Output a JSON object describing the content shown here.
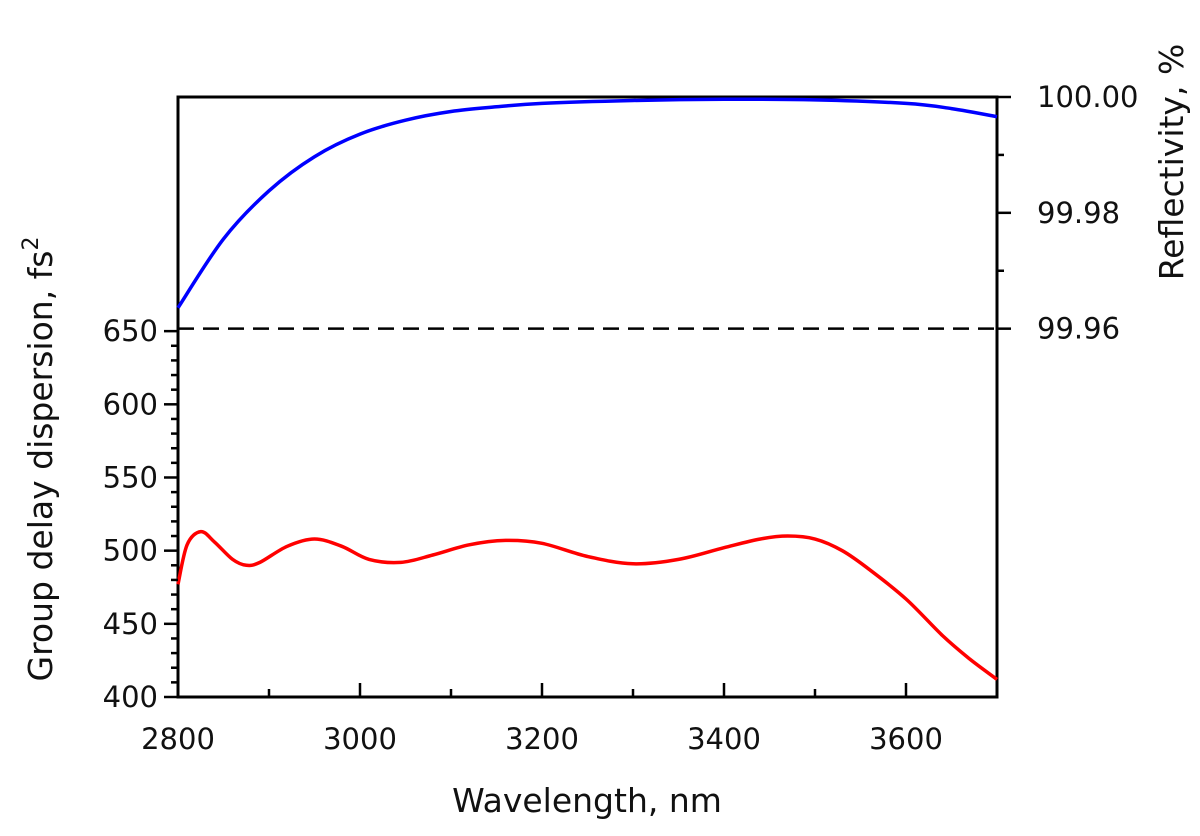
{
  "chart_data": {
    "type": "line",
    "xlabel": "Wavelength, nm",
    "ylabel": "Group delay dispersion, fs",
    "ylabel_superscript": "2",
    "y2label": "Reflectivity, %",
    "xlim": [
      2800,
      3700
    ],
    "ylim": [
      400,
      810
    ],
    "y2lim": [
      99.8964,
      100.0
    ],
    "x_ticks": [
      "2800",
      "3000",
      "3200",
      "3400",
      "3600"
    ],
    "y_ticks": [
      "400",
      "450",
      "500",
      "550",
      "600",
      "650"
    ],
    "y2_ticks": [
      "99.96",
      "99.98",
      "100.00"
    ],
    "reference_line": {
      "axis": "right",
      "value": 99.96,
      "style": "dashed"
    },
    "series": [
      {
        "color": "#ff0000",
        "axis": "left",
        "x": [
          2800,
          2810,
          2825,
          2840,
          2860,
          2875,
          2890,
          2920,
          2950,
          2980,
          3010,
          3045,
          3080,
          3120,
          3160,
          3200,
          3250,
          3300,
          3350,
          3400,
          3440,
          3470,
          3500,
          3530,
          3560,
          3600,
          3640,
          3670,
          3700
        ],
        "values": [
          477,
          504,
          513,
          506,
          494,
          490,
          492,
          503,
          508,
          503,
          494,
          492,
          497,
          504,
          507,
          505,
          496,
          491,
          494,
          502,
          508,
          510,
          508,
          500,
          487,
          467,
          442,
          426,
          412
        ]
      },
      {
        "color": "#0000ff",
        "axis": "right",
        "x": [
          2800,
          2850,
          2900,
          2950,
          3000,
          3050,
          3100,
          3150,
          3200,
          3300,
          3400,
          3500,
          3600,
          3650,
          3700
        ],
        "values": [
          99.9636,
          99.9755,
          99.9838,
          99.9897,
          99.9936,
          99.996,
          99.9975,
          99.9983,
          99.9989,
          99.9994,
          99.9996,
          99.9995,
          99.9989,
          99.998,
          99.9966
        ]
      }
    ]
  }
}
